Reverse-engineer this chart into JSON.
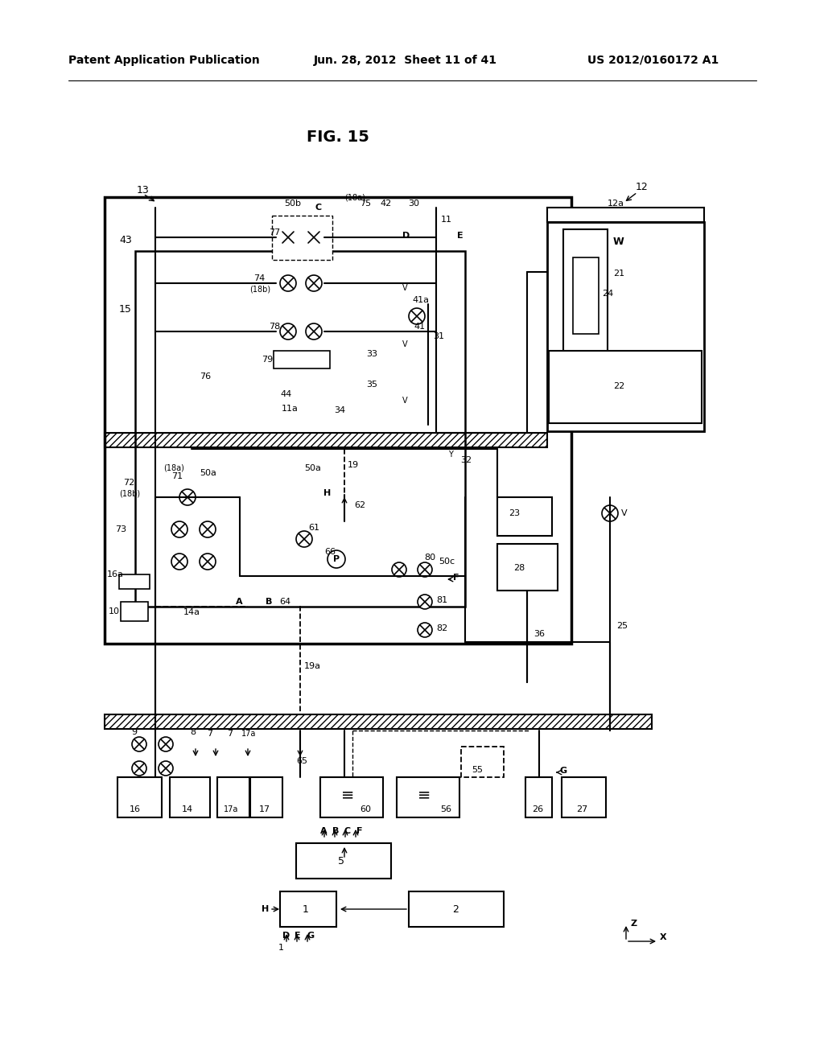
{
  "bg_color": "#ffffff",
  "line_color": "#000000",
  "header_text": "Patent Application Publication",
  "header_date": "Jun. 28, 2012  Sheet 11 of 41",
  "header_patent": "US 2012/0160172 A1",
  "fig_title": "FIG. 15",
  "title_fontsize": 14,
  "header_fontsize": 10
}
